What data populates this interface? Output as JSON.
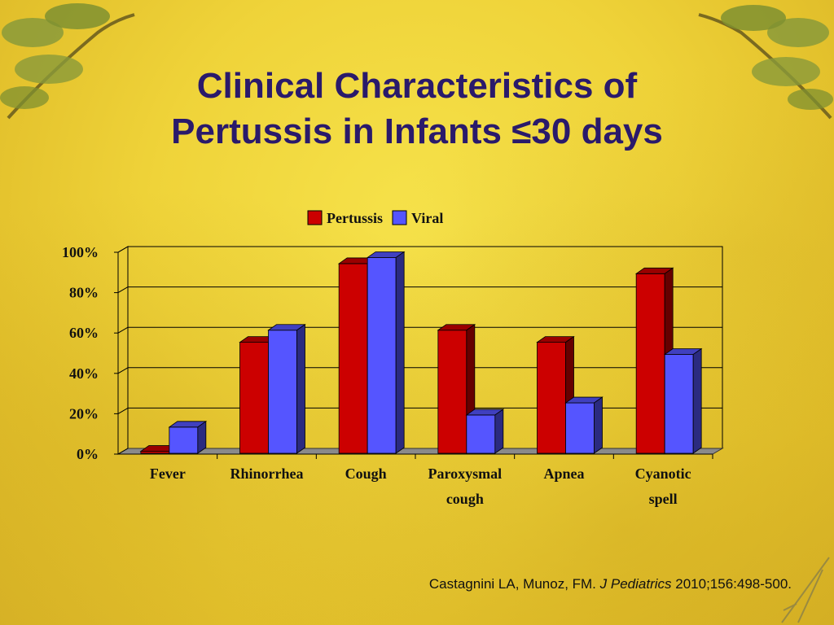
{
  "title": {
    "line1": "Clinical Characteristics of",
    "line2": "Pertussis in Infants ≤30 days"
  },
  "citation": {
    "authors": "Castagnini LA, Munoz, FM.",
    "journal": "J Pediatrics",
    "ref": "2010;156:498-500."
  },
  "colors": {
    "pertussis": "#cc0000",
    "viral": "#5555ff",
    "title": "#2a1a6b"
  },
  "chart_data": {
    "type": "bar",
    "categories": [
      [
        "Fever"
      ],
      [
        "Rhinorrhea"
      ],
      [
        "Cough"
      ],
      [
        "Paroxysmal",
        "cough"
      ],
      [
        "Apnea"
      ],
      [
        "Cyanotic",
        "spell"
      ]
    ],
    "series": [
      {
        "name": "Pertussis",
        "values": [
          3,
          57,
          96,
          63,
          57,
          91
        ]
      },
      {
        "name": "Viral",
        "values": [
          15,
          63,
          99,
          21,
          27,
          51
        ]
      }
    ],
    "y_ticks": [
      "0%",
      "20%",
      "40%",
      "60%",
      "80%",
      "100%"
    ],
    "ylim": [
      0,
      100
    ],
    "grid": true,
    "legend_position": "top-center",
    "style": "3d-clustered-column"
  }
}
